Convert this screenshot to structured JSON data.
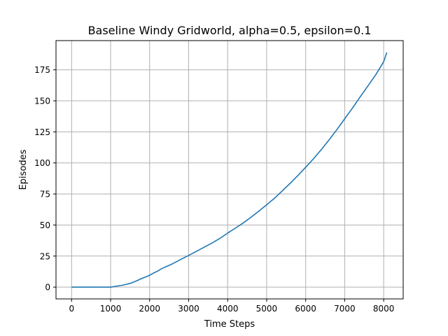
{
  "chart_data": {
    "type": "line",
    "title": "Baseline Windy Gridworld, alpha=0.5, epsilon=0.1",
    "xlabel": "Time Steps",
    "ylabel": "Episodes",
    "xlim": [
      -400,
      8500
    ],
    "ylim": [
      -9.5,
      198.5
    ],
    "grid": true,
    "xticks": [
      0,
      1000,
      2000,
      3000,
      4000,
      5000,
      6000,
      7000,
      8000
    ],
    "yticks": [
      0,
      25,
      50,
      75,
      100,
      125,
      150,
      175
    ],
    "series": [
      {
        "color": "#1f77b4",
        "x": [
          0,
          200,
          400,
          600,
          800,
          1000,
          1100,
          1200,
          1300,
          1400,
          1500,
          1600,
          1700,
          1800,
          1900,
          2000,
          2100,
          2200,
          2300,
          2400,
          2500,
          2600,
          2800,
          3000,
          3200,
          3400,
          3600,
          3800,
          4000,
          4200,
          4400,
          4600,
          4800,
          5000,
          5200,
          5400,
          5600,
          5800,
          6000,
          6200,
          6400,
          6600,
          6800,
          7000,
          7200,
          7400,
          7600,
          7800,
          8000,
          8080
        ],
        "y": [
          0,
          0,
          0,
          0,
          0,
          0,
          0.5,
          1,
          1.5,
          2.2,
          3,
          4.2,
          5.5,
          7,
          8.2,
          9.5,
          11.3,
          12.8,
          14.7,
          16.2,
          17.5,
          19,
          22.3,
          25.5,
          28.8,
          32.2,
          35.5,
          39.2,
          43.5,
          47.5,
          51.7,
          56.3,
          61.2,
          66.3,
          71.5,
          77.5,
          83.5,
          89.8,
          96.5,
          103.3,
          110.7,
          118.5,
          126.8,
          135.5,
          144.2,
          153.3,
          162.2,
          171.2,
          181.5,
          189
        ]
      }
    ]
  }
}
